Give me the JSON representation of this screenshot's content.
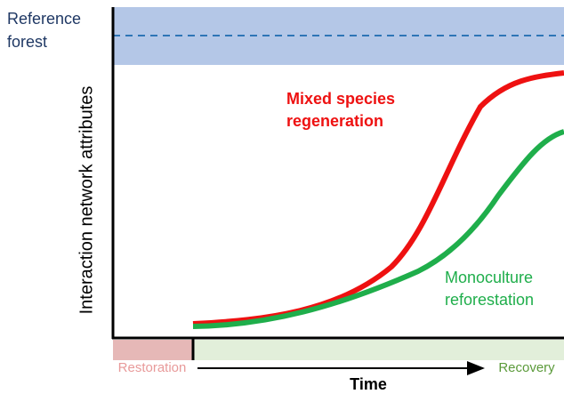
{
  "reference": {
    "lines": [
      "Reference",
      "forest"
    ]
  },
  "y_axis": {
    "label": "Interaction network attributes"
  },
  "curves": [
    {
      "lines": [
        "Mixed species",
        "regeneration"
      ]
    },
    {
      "lines": [
        "Monoculture",
        "reforestation"
      ]
    }
  ],
  "x_axis": {
    "label": "Time",
    "start": "Restoration",
    "end": "Recovery"
  }
}
